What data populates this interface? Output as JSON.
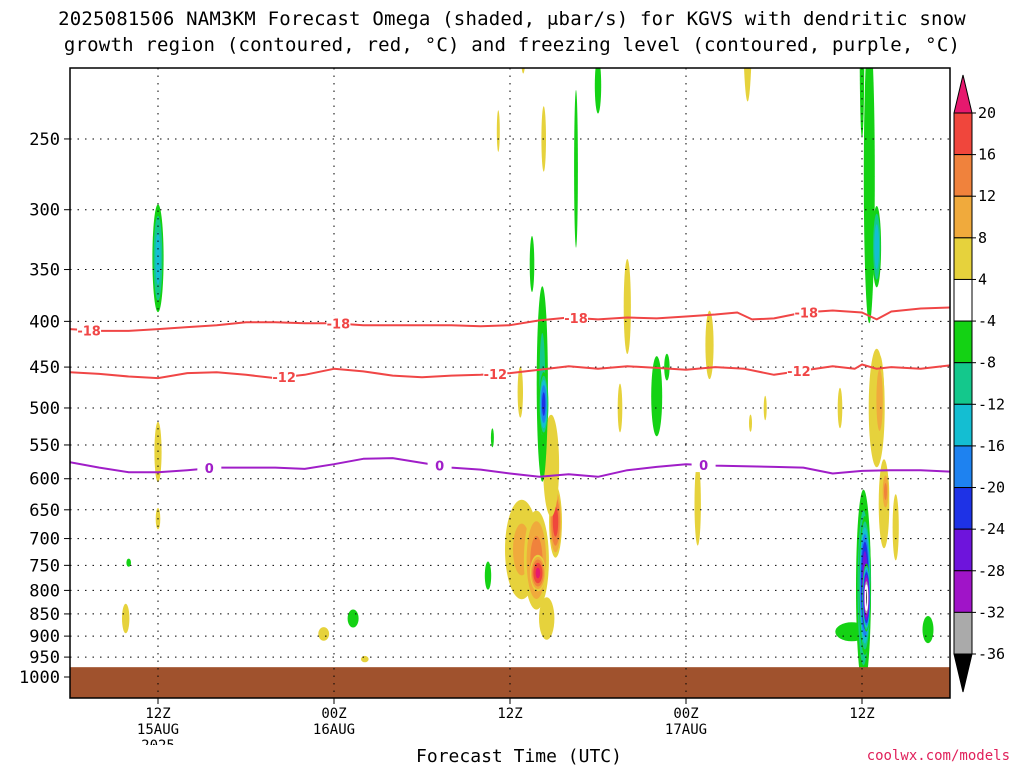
{
  "title": {
    "line1": "2025081506 NAM3KM Forecast Omega (shaded, μbar/s) for KGVS with dendritic snow",
    "line2": "growth region (contoured, red, °C) and freezing level (contoured, purple, °C)"
  },
  "credit": "coolwx.com/models",
  "colors": {
    "dgz_contour": "#f04646",
    "freezing_contour": "#a01ec8",
    "ground": "#a0522d",
    "gridline": "#000000"
  },
  "chart_data": {
    "type": "heatmap",
    "title": "2025081506 NAM3KM Forecast Omega (shaded, μbar/s) for KGVS with dendritic snow growth region (contoured, red, °C) and freezing level (contoured, purple, °C)",
    "xlabel": "Forecast Time (UTC)",
    "ylabel": "",
    "x_range_hours": [
      6,
      66
    ],
    "y_axis": {
      "scale": "pressure (log)",
      "ylim": [
        1000,
        200
      ],
      "inverted": true
    },
    "y_ticks": [
      250,
      300,
      350,
      400,
      450,
      500,
      550,
      600,
      650,
      700,
      750,
      800,
      850,
      900,
      950,
      1000
    ],
    "x_ticks": [
      {
        "hour": 12,
        "lines": [
          "12Z",
          "15AUG",
          "2025"
        ]
      },
      {
        "hour": 24,
        "lines": [
          "00Z",
          "16AUG"
        ]
      },
      {
        "hour": 36,
        "lines": [
          "12Z"
        ]
      },
      {
        "hour": 48,
        "lines": [
          "00Z",
          "17AUG"
        ]
      },
      {
        "hour": 60,
        "lines": [
          "12Z"
        ]
      }
    ],
    "colorbar": {
      "levels": [
        20,
        16,
        12,
        8,
        4,
        -4,
        -8,
        -12,
        -16,
        -20,
        -24,
        -28,
        -32,
        -36
      ],
      "colors": [
        {
          "range": "above 20",
          "color": "#e6196e"
        },
        {
          "range": "16 to 20",
          "color": "#f0463c"
        },
        {
          "range": "12 to 16",
          "color": "#f0823c"
        },
        {
          "range": "8 to 12",
          "color": "#f0aa3c"
        },
        {
          "range": "4 to 8",
          "color": "#e6d23c"
        },
        {
          "range": "-4 to 4",
          "color": "#ffffff"
        },
        {
          "range": "-8 to -4",
          "color": "#14d214"
        },
        {
          "range": "-12 to -8",
          "color": "#14c88c"
        },
        {
          "range": "-16 to -12",
          "color": "#14bed2"
        },
        {
          "range": "-20 to -16",
          "color": "#1e82f0"
        },
        {
          "range": "-24 to -20",
          "color": "#1e32e6"
        },
        {
          "range": "-28 to -24",
          "color": "#6e14dc"
        },
        {
          "range": "-32 to -28",
          "color": "#a014c8"
        },
        {
          "range": "-36 to -32",
          "color": "#aaaaaa"
        },
        {
          "range": "below -36",
          "color": "#000000"
        }
      ]
    },
    "contours": [
      {
        "name": "-18",
        "field": "temperature",
        "color": "#f04646",
        "label_text": "-18",
        "label_hours": [
          7.3,
          24.3,
          40.5,
          56.2
        ],
        "points": [
          [
            6,
            408
          ],
          [
            8,
            410
          ],
          [
            10,
            410
          ],
          [
            12,
            408
          ],
          [
            14,
            406
          ],
          [
            16,
            404
          ],
          [
            18,
            401
          ],
          [
            20,
            401
          ],
          [
            22,
            402
          ],
          [
            24,
            402
          ],
          [
            26,
            404
          ],
          [
            28,
            404
          ],
          [
            30,
            404
          ],
          [
            32,
            404
          ],
          [
            34,
            405
          ],
          [
            36,
            404
          ],
          [
            38,
            399
          ],
          [
            40,
            396
          ],
          [
            42,
            398
          ],
          [
            44,
            396
          ],
          [
            46,
            397
          ],
          [
            48,
            395
          ],
          [
            50,
            393
          ],
          [
            51.5,
            391
          ],
          [
            52.5,
            398
          ],
          [
            54,
            397
          ],
          [
            56,
            391
          ],
          [
            58,
            389
          ],
          [
            60,
            391
          ],
          [
            61,
            398
          ],
          [
            62,
            390
          ],
          [
            64,
            387
          ],
          [
            66,
            386
          ]
        ]
      },
      {
        "name": "-12",
        "field": "temperature",
        "color": "#f04646",
        "label_text": "-12",
        "label_hours": [
          20.6,
          35.0,
          55.7
        ],
        "points": [
          [
            6,
            456
          ],
          [
            8,
            458
          ],
          [
            10,
            461
          ],
          [
            12,
            463
          ],
          [
            14,
            457
          ],
          [
            16,
            456
          ],
          [
            18,
            459
          ],
          [
            20,
            463
          ],
          [
            22,
            459
          ],
          [
            24,
            452
          ],
          [
            26,
            455
          ],
          [
            28,
            460
          ],
          [
            30,
            462
          ],
          [
            32,
            460
          ],
          [
            34,
            459
          ],
          [
            35,
            458
          ],
          [
            36,
            457
          ],
          [
            38,
            453
          ],
          [
            40,
            449
          ],
          [
            42,
            452
          ],
          [
            44,
            449
          ],
          [
            46,
            451
          ],
          [
            48,
            453
          ],
          [
            50,
            450
          ],
          [
            52,
            452
          ],
          [
            54,
            459
          ],
          [
            56,
            454
          ],
          [
            58,
            449
          ],
          [
            59.5,
            452
          ],
          [
            60,
            447
          ],
          [
            61,
            452
          ],
          [
            62,
            450
          ],
          [
            64,
            452
          ],
          [
            66,
            448
          ]
        ]
      },
      {
        "name": "0",
        "field": "temperature",
        "color": "#a01ec8",
        "label_text": "0",
        "label_hours": [
          15.5,
          31.2,
          49.2
        ],
        "points": [
          [
            6,
            575
          ],
          [
            8,
            583
          ],
          [
            10,
            590
          ],
          [
            12,
            590
          ],
          [
            14,
            587
          ],
          [
            16,
            583
          ],
          [
            18,
            583
          ],
          [
            20,
            583
          ],
          [
            22,
            585
          ],
          [
            24,
            578
          ],
          [
            26,
            570
          ],
          [
            28,
            569
          ],
          [
            30,
            576
          ],
          [
            32,
            583
          ],
          [
            34,
            586
          ],
          [
            36,
            592
          ],
          [
            38,
            597
          ],
          [
            40,
            593
          ],
          [
            42,
            597
          ],
          [
            44,
            587
          ],
          [
            46,
            582
          ],
          [
            48,
            578
          ],
          [
            50,
            580
          ],
          [
            52,
            581
          ],
          [
            54,
            582
          ],
          [
            56,
            583
          ],
          [
            58,
            592
          ],
          [
            60,
            588
          ],
          [
            62,
            587
          ],
          [
            64,
            587
          ],
          [
            66,
            589
          ]
        ]
      }
    ],
    "omega_features": [
      {
        "hour": 12.0,
        "p_center": 340,
        "p_depth": 55,
        "half_width_h": 0.45,
        "peak": -14
      },
      {
        "hour": 12.0,
        "p_center": 560,
        "p_depth": 70,
        "half_width_h": 0.4,
        "peak": 6
      },
      {
        "hour": 12.0,
        "p_center": 665,
        "p_depth": 35,
        "half_width_h": 0.3,
        "peak": 5
      },
      {
        "hour": 9.8,
        "p_center": 860,
        "p_depth": 45,
        "half_width_h": 0.35,
        "peak": 8
      },
      {
        "hour": 10.0,
        "p_center": 745,
        "p_depth": 15,
        "half_width_h": 0.3,
        "peak": -5
      },
      {
        "hour": 23.3,
        "p_center": 895,
        "p_depth": 30,
        "half_width_h": 0.7,
        "peak": 5
      },
      {
        "hour": 25.3,
        "p_center": 860,
        "p_depth": 32,
        "half_width_h": 0.6,
        "peak": -6
      },
      {
        "hour": 26.1,
        "p_center": 955,
        "p_depth": 15,
        "half_width_h": 0.5,
        "peak": 5
      },
      {
        "hour": 36.8,
        "p_center": 720,
        "p_depth": 120,
        "half_width_h": 1.5,
        "peak": 9
      },
      {
        "hour": 37.8,
        "p_center": 740,
        "p_depth": 110,
        "half_width_h": 1.0,
        "peak": 14
      },
      {
        "hour": 37.9,
        "p_center": 765,
        "p_depth": 40,
        "half_width_h": 0.6,
        "peak": 21
      },
      {
        "hour": 39.1,
        "p_center": 670,
        "p_depth": 70,
        "half_width_h": 0.5,
        "peak": 18
      },
      {
        "hour": 38.8,
        "p_center": 580,
        "p_depth": 110,
        "half_width_h": 0.8,
        "peak": 7
      },
      {
        "hour": 38.5,
        "p_center": 860,
        "p_depth": 90,
        "half_width_h": 1.0,
        "peak": 5
      },
      {
        "hour": 36.7,
        "p_center": 480,
        "p_depth": 60,
        "half_width_h": 0.35,
        "peak": 5
      },
      {
        "hour": 38.2,
        "p_center": 470,
        "p_depth": 150,
        "half_width_h": 0.5,
        "peak": -9
      },
      {
        "hour": 38.3,
        "p_center": 495,
        "p_depth": 45,
        "half_width_h": 0.35,
        "peak": -22
      },
      {
        "hour": 37.5,
        "p_center": 345,
        "p_depth": 40,
        "half_width_h": 0.25,
        "peak": -6
      },
      {
        "hour": 38.3,
        "p_center": 250,
        "p_depth": 40,
        "half_width_h": 0.3,
        "peak": 5
      },
      {
        "hour": 36.9,
        "p_center": 195,
        "p_depth": 25,
        "half_width_h": 0.3,
        "peak": 6
      },
      {
        "hour": 35.2,
        "p_center": 245,
        "p_depth": 25,
        "half_width_h": 0.2,
        "peak": 5
      },
      {
        "hour": 40.5,
        "p_center": 270,
        "p_depth": 100,
        "half_width_h": 0.25,
        "peak": -5
      },
      {
        "hour": 34.5,
        "p_center": 770,
        "p_depth": 45,
        "half_width_h": 0.35,
        "peak": -6
      },
      {
        "hour": 34.8,
        "p_center": 540,
        "p_depth": 25,
        "half_width_h": 0.2,
        "peak": -5
      },
      {
        "hour": 42.0,
        "p_center": 218,
        "p_depth": 25,
        "half_width_h": 0.35,
        "peak": -6
      },
      {
        "hour": 44.0,
        "p_center": 385,
        "p_depth": 75,
        "half_width_h": 0.4,
        "peak": 6
      },
      {
        "hour": 43.5,
        "p_center": 500,
        "p_depth": 60,
        "half_width_h": 0.3,
        "peak": 5
      },
      {
        "hour": 46.0,
        "p_center": 485,
        "p_depth": 80,
        "half_width_h": 0.6,
        "peak": -6
      },
      {
        "hour": 46.7,
        "p_center": 450,
        "p_depth": 25,
        "half_width_h": 0.3,
        "peak": -6
      },
      {
        "hour": 48.8,
        "p_center": 640,
        "p_depth": 110,
        "half_width_h": 0.35,
        "peak": 6
      },
      {
        "hour": 49.6,
        "p_center": 425,
        "p_depth": 60,
        "half_width_h": 0.45,
        "peak": 6
      },
      {
        "hour": 52.2,
        "p_center": 175,
        "p_depth": 60,
        "half_width_h": 0.45,
        "peak": 8
      },
      {
        "hour": 52.4,
        "p_center": 520,
        "p_depth": 22,
        "half_width_h": 0.2,
        "peak": 5
      },
      {
        "hour": 53.4,
        "p_center": 500,
        "p_depth": 30,
        "half_width_h": 0.2,
        "peak": 5
      },
      {
        "hour": 58.5,
        "p_center": 500,
        "p_depth": 50,
        "half_width_h": 0.3,
        "peak": 5
      },
      {
        "hour": 59.3,
        "p_center": 890,
        "p_depth": 35,
        "half_width_h": 1.8,
        "peak": -6
      },
      {
        "hour": 60.1,
        "p_center": 795,
        "p_depth": 230,
        "half_width_h": 0.6,
        "peak": -14
      },
      {
        "hour": 60.2,
        "p_center": 790,
        "p_depth": 150,
        "half_width_h": 0.45,
        "peak": -30
      },
      {
        "hour": 60.3,
        "p_center": 815,
        "p_depth": 75,
        "half_width_h": 0.3,
        "peak": -40
      },
      {
        "hour": 60.5,
        "p_center": 275,
        "p_depth": 150,
        "half_width_h": 0.6,
        "peak": -6
      },
      {
        "hour": 61.0,
        "p_center": 330,
        "p_depth": 40,
        "half_width_h": 0.35,
        "peak": -15
      },
      {
        "hour": 60.0,
        "p_center": 200,
        "p_depth": 80,
        "half_width_h": 0.3,
        "peak": -5
      },
      {
        "hour": 61.0,
        "p_center": 500,
        "p_depth": 110,
        "half_width_h": 0.8,
        "peak": 7
      },
      {
        "hour": 61.2,
        "p_center": 490,
        "p_depth": 70,
        "half_width_h": 0.4,
        "peak": 11
      },
      {
        "hour": 61.5,
        "p_center": 640,
        "p_depth": 100,
        "half_width_h": 0.5,
        "peak": 8
      },
      {
        "hour": 61.6,
        "p_center": 620,
        "p_depth": 40,
        "half_width_h": 0.3,
        "peak": 13
      },
      {
        "hour": 62.3,
        "p_center": 680,
        "p_depth": 110,
        "half_width_h": 0.4,
        "peak": 5
      },
      {
        "hour": 64.5,
        "p_center": 885,
        "p_depth": 50,
        "half_width_h": 0.6,
        "peak": -6
      }
    ],
    "ground_level_hpa": 975
  }
}
